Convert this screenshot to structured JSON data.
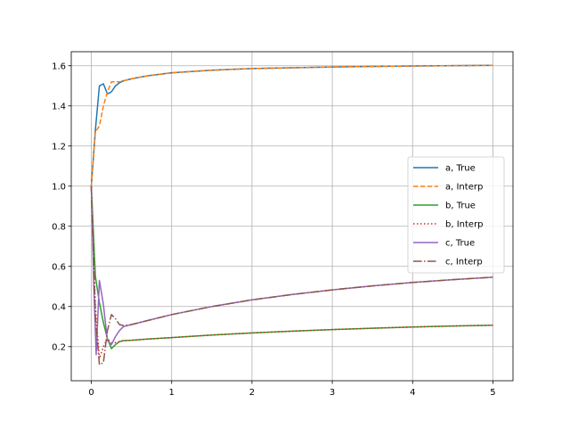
{
  "chart_data": {
    "type": "line",
    "title": "",
    "xlabel": "",
    "ylabel": "",
    "xlim": [
      -0.25,
      5.25
    ],
    "ylim": [
      0.03,
      1.67
    ],
    "xticks": [
      0,
      1,
      2,
      3,
      4,
      5
    ],
    "yticks": [
      0.2,
      0.4,
      0.6,
      0.8,
      1.0,
      1.2,
      1.4,
      1.6
    ],
    "xtick_labels": [
      "0",
      "1",
      "2",
      "3",
      "4",
      "5"
    ],
    "ytick_labels": [
      "0.2",
      "0.4",
      "0.6",
      "0.8",
      "1.0",
      "1.2",
      "1.4",
      "1.6"
    ],
    "grid": true,
    "legend_position": "center-right",
    "series": [
      {
        "name": "a, True",
        "color": "#1f77b4",
        "dash": "solid",
        "x": [
          0,
          0.05,
          0.1,
          0.15,
          0.2,
          0.25,
          0.3,
          0.35,
          0.4,
          0.5,
          0.7,
          1,
          1.5,
          2,
          3,
          4,
          5
        ],
        "y": [
          1.0,
          1.28,
          1.5,
          1.51,
          1.46,
          1.47,
          1.5,
          1.515,
          1.525,
          1.535,
          1.55,
          1.565,
          1.578,
          1.586,
          1.594,
          1.599,
          1.602
        ]
      },
      {
        "name": "a, Interp",
        "color": "#ff7f0e",
        "dash": "dashed",
        "x": [
          0,
          0.05,
          0.1,
          0.15,
          0.2,
          0.25,
          0.3,
          0.35,
          0.4,
          0.5,
          0.7,
          1,
          1.5,
          2,
          3,
          4,
          5
        ],
        "y": [
          1.0,
          1.27,
          1.3,
          1.4,
          1.47,
          1.52,
          1.52,
          1.52,
          1.525,
          1.535,
          1.55,
          1.565,
          1.578,
          1.586,
          1.594,
          1.599,
          1.602
        ]
      },
      {
        "name": "b, True",
        "color": "#2ca02c",
        "dash": "solid",
        "x": [
          0,
          0.05,
          0.1,
          0.15,
          0.2,
          0.25,
          0.3,
          0.35,
          0.4,
          0.5,
          0.7,
          1,
          1.5,
          2,
          2.5,
          3,
          3.5,
          4,
          4.5,
          5
        ],
        "y": [
          1.0,
          0.55,
          0.42,
          0.32,
          0.24,
          0.19,
          0.21,
          0.225,
          0.23,
          0.232,
          0.238,
          0.245,
          0.258,
          0.268,
          0.277,
          0.285,
          0.292,
          0.298,
          0.303,
          0.307
        ]
      },
      {
        "name": "b, Interp",
        "color": "#d62728",
        "dash": "dotted",
        "x": [
          0,
          0.05,
          0.1,
          0.15,
          0.2,
          0.25,
          0.3,
          0.35,
          0.4,
          0.5,
          0.7,
          1,
          1.5,
          2,
          2.5,
          3,
          3.5,
          4,
          4.5,
          5
        ],
        "y": [
          1.0,
          0.4,
          0.14,
          0.2,
          0.24,
          0.22,
          0.22,
          0.225,
          0.23,
          0.232,
          0.238,
          0.245,
          0.258,
          0.268,
          0.277,
          0.285,
          0.292,
          0.298,
          0.303,
          0.307
        ]
      },
      {
        "name": "c, True",
        "color": "#9467bd",
        "dash": "solid",
        "x": [
          0,
          0.03,
          0.06,
          0.1,
          0.15,
          0.2,
          0.25,
          0.3,
          0.35,
          0.4,
          0.5,
          0.7,
          1,
          1.5,
          2,
          2.5,
          3,
          3.5,
          4,
          4.5,
          5
        ],
        "y": [
          1.0,
          0.5,
          0.16,
          0.53,
          0.41,
          0.23,
          0.21,
          0.25,
          0.28,
          0.3,
          0.31,
          0.33,
          0.36,
          0.4,
          0.433,
          0.46,
          0.483,
          0.503,
          0.52,
          0.534,
          0.546
        ]
      },
      {
        "name": "c, Interp",
        "color": "#8c564b",
        "dash": "dashdot",
        "x": [
          0,
          0.05,
          0.1,
          0.15,
          0.2,
          0.25,
          0.3,
          0.35,
          0.4,
          0.5,
          0.7,
          1,
          1.5,
          2,
          2.5,
          3,
          3.5,
          4,
          4.5,
          5
        ],
        "y": [
          1.0,
          0.35,
          0.11,
          0.12,
          0.28,
          0.36,
          0.34,
          0.31,
          0.305,
          0.31,
          0.33,
          0.36,
          0.4,
          0.433,
          0.46,
          0.483,
          0.503,
          0.52,
          0.534,
          0.546
        ]
      }
    ]
  }
}
